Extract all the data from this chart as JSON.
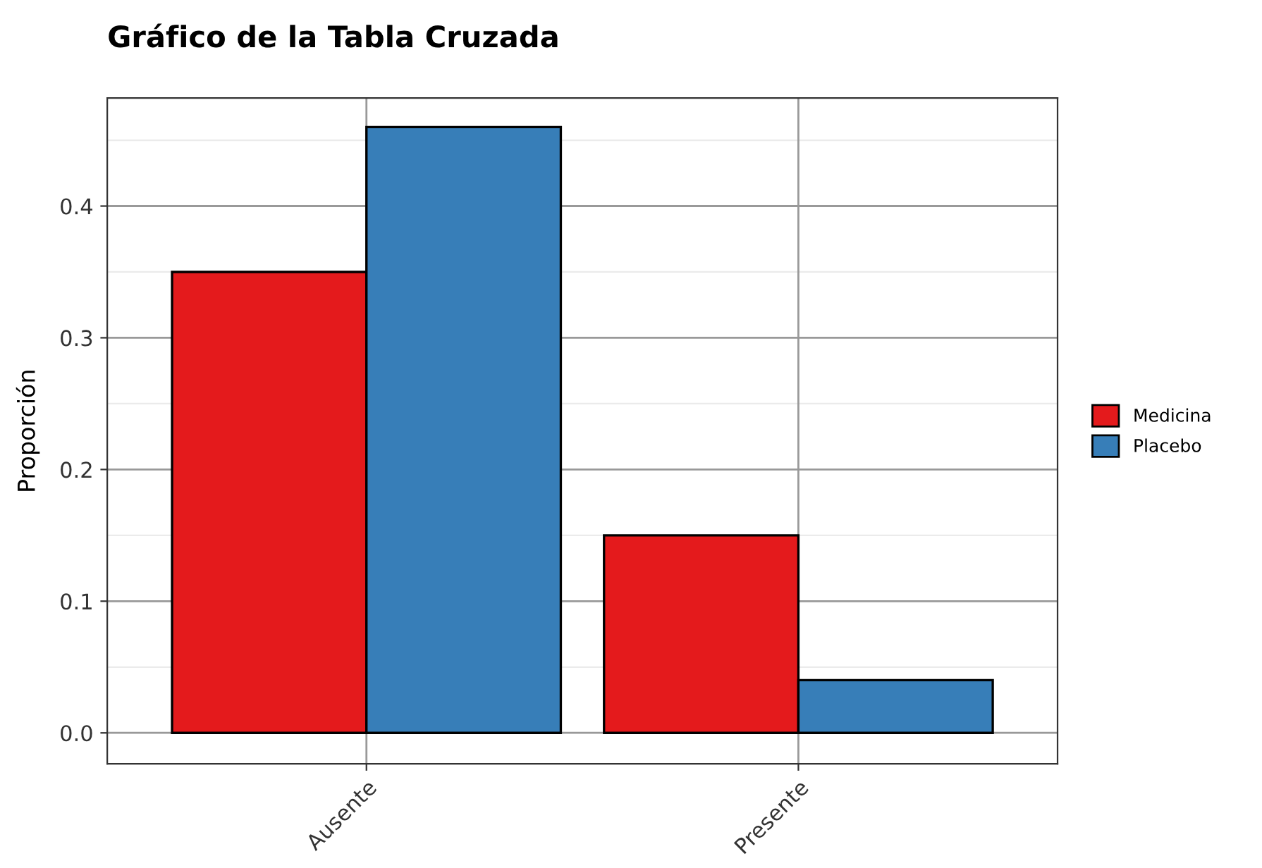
{
  "chart_data": {
    "type": "bar",
    "title": "Gráfico de la Tabla Cruzada",
    "ylabel": "Proporción",
    "categories": [
      "Ausente",
      "Presente"
    ],
    "series": [
      {
        "name": "Medicina",
        "color": "#e41a1c",
        "values": [
          0.35,
          0.15
        ]
      },
      {
        "name": "Placebo",
        "color": "#377eb8",
        "values": [
          0.46,
          0.04
        ]
      }
    ],
    "ylim": [
      -0.0235,
      0.482
    ],
    "yticks": [
      {
        "value": 0,
        "label": "0.0"
      },
      0.1,
      0.2,
      0.3,
      0.4
    ],
    "grid": true,
    "legend": "right"
  }
}
